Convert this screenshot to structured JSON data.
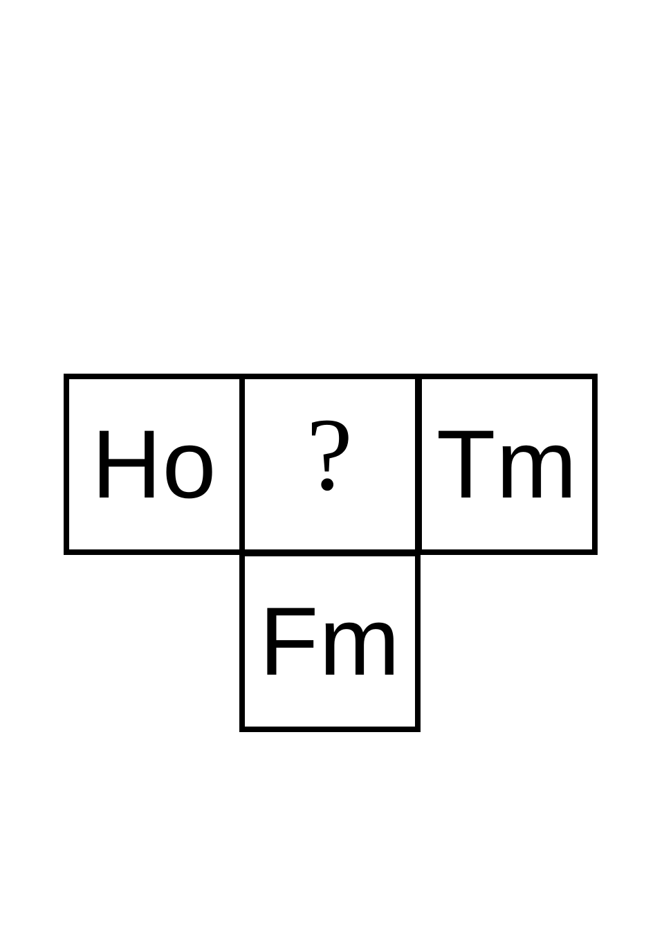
{
  "grid": {
    "left": {
      "label": "Ho"
    },
    "center": {
      "label": "?"
    },
    "right": {
      "label": "Tm"
    },
    "bottom": {
      "label": "Fm"
    }
  },
  "colors": {
    "border": "#000000",
    "text": "#000000",
    "background": "#ffffff"
  }
}
